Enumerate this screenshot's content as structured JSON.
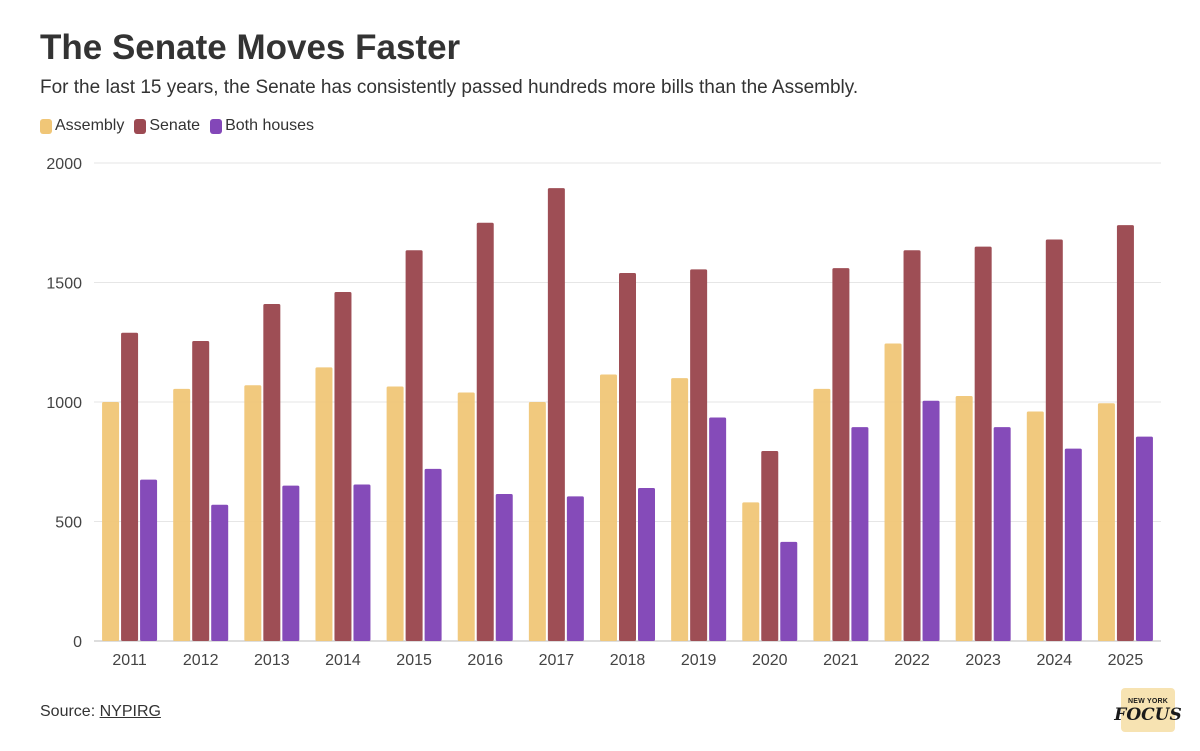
{
  "header": {
    "title": "The Senate Moves Faster",
    "subtitle": "For the last 15 years, the Senate has consistently passed hundreds more bills than the Assembly."
  },
  "footer": {
    "source_label": "Source: ",
    "source_link": "NYPIRG",
    "logo_line1": "NEW YORK",
    "logo_line2": "FOCUS"
  },
  "chart_data": {
    "type": "bar",
    "title": "The Senate Moves Faster",
    "xlabel": "",
    "ylabel": "",
    "ylim": [
      0,
      2000
    ],
    "yticks": [
      0,
      500,
      1000,
      1500,
      2000
    ],
    "grid": true,
    "legend": "top-left",
    "categories": [
      "2011",
      "2012",
      "2013",
      "2014",
      "2015",
      "2016",
      "2017",
      "2018",
      "2019",
      "2020",
      "2021",
      "2022",
      "2023",
      "2024",
      "2025"
    ],
    "series": [
      {
        "name": "Assembly",
        "color": "#f0c677",
        "values": [
          1000,
          1055,
          1070,
          1145,
          1065,
          1040,
          1000,
          1115,
          1100,
          580,
          1055,
          1245,
          1025,
          960,
          995
        ]
      },
      {
        "name": "Senate",
        "color": "#9c4a52",
        "values": [
          1290,
          1255,
          1410,
          1460,
          1635,
          1750,
          1895,
          1540,
          1555,
          795,
          1560,
          1635,
          1650,
          1680,
          1740
        ]
      },
      {
        "name": "Both houses",
        "color": "#8347b8",
        "values": [
          675,
          570,
          650,
          655,
          720,
          615,
          605,
          640,
          935,
          415,
          895,
          1005,
          895,
          805,
          855
        ]
      }
    ]
  }
}
